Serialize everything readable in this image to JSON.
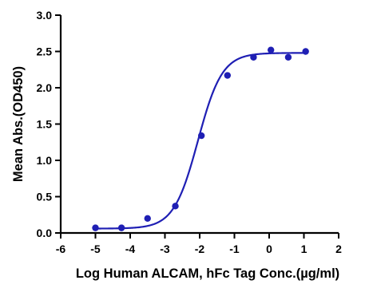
{
  "chart_data": {
    "type": "scatter",
    "title": "",
    "xlabel": "Log Human ALCAM, hFc Tag Conc.(µg/ml)",
    "ylabel": "Mean Abs.(OD450)",
    "xlim": [
      -6,
      2
    ],
    "ylim": [
      0,
      3
    ],
    "x_ticks": [
      -6,
      -5,
      -4,
      -3,
      -2,
      -1,
      0,
      1,
      2
    ],
    "y_ticks": [
      "0.0",
      "0.5",
      "1.0",
      "1.5",
      "2.0",
      "2.5",
      "3.0"
    ],
    "grid": false,
    "legend": "none",
    "series": [
      {
        "color": "#1f1fb4",
        "points": [
          {
            "x": -5.0,
            "y": 0.07
          },
          {
            "x": -4.25,
            "y": 0.07
          },
          {
            "x": -3.5,
            "y": 0.2
          },
          {
            "x": -2.7,
            "y": 0.37
          },
          {
            "x": -1.95,
            "y": 1.34
          },
          {
            "x": -1.2,
            "y": 2.17
          },
          {
            "x": -0.45,
            "y": 2.42
          },
          {
            "x": 0.05,
            "y": 2.52
          },
          {
            "x": 0.55,
            "y": 2.42
          },
          {
            "x": 1.05,
            "y": 2.5
          }
        ],
        "fit": {
          "model": "4PL",
          "bottom": 0.06,
          "top": 2.48,
          "logEC50": -2.05,
          "hill": 1.25
        }
      }
    ]
  }
}
